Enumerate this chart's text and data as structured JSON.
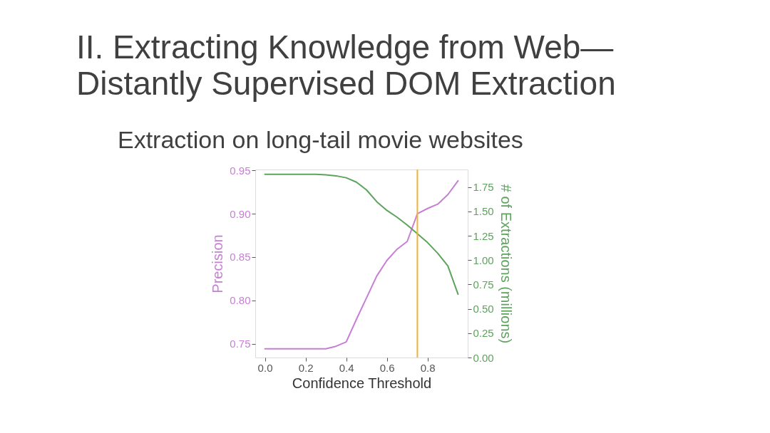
{
  "chart_data": {
    "type": "line",
    "title": "II. Extracting Knowledge from Web—\nDistantly Supervised DOM Extraction",
    "subtitle": "Extraction on long-tail movie websites",
    "xlabel": "Confidence Threshold",
    "ylabel": "Precision",
    "y2label": "# of Extractions (millions)",
    "x": [
      0,
      0.05,
      0.1,
      0.15,
      0.2,
      0.25,
      0.3,
      0.35,
      0.4,
      0.45,
      0.5,
      0.55,
      0.6,
      0.65,
      0.7,
      0.75,
      0.8,
      0.85,
      0.9,
      0.95
    ],
    "series": [
      {
        "color": "#c77fd5",
        "axis": "y",
        "values": [
          0.744,
          0.744,
          0.744,
          0.744,
          0.744,
          0.744,
          0.744,
          0.747,
          0.752,
          0.778,
          0.803,
          0.828,
          0.846,
          0.859,
          0.868,
          0.9,
          0.906,
          0.911,
          0.922,
          0.938
        ]
      },
      {
        "color": "#5da35d",
        "axis": "y2",
        "values": [
          1.88,
          1.88,
          1.88,
          1.88,
          1.88,
          1.88,
          1.875,
          1.865,
          1.845,
          1.8,
          1.72,
          1.6,
          1.51,
          1.44,
          1.36,
          1.27,
          1.18,
          1.07,
          0.94,
          0.65
        ]
      }
    ],
    "xlim": [
      -0.0475,
      0.9975
    ],
    "xticks": [
      {
        "value": 0,
        "label": "0.0"
      },
      0.2,
      0.4,
      0.6,
      0.8
    ],
    "ylim": [
      0.734,
      0.951
    ],
    "yticks": [
      0.75,
      {
        "value": 0.8,
        "label": "0.80"
      },
      0.85,
      {
        "value": 0.9,
        "label": "0.90"
      },
      0.95
    ],
    "y2lim": [
      0,
      1.93
    ],
    "y2ticks": [
      {
        "value": 0,
        "label": "0.00"
      },
      0.25,
      {
        "value": 0.5,
        "label": "0.50"
      },
      0.75,
      {
        "value": 1,
        "label": "1.00"
      },
      1.25,
      {
        "value": 1.5,
        "label": "1.50"
      },
      1.75
    ],
    "ref_lines": [
      {
        "axis": "x",
        "value": 0.75,
        "color": "#f2b13a"
      }
    ],
    "grid": false,
    "marker": "none",
    "line_style": "solid"
  }
}
